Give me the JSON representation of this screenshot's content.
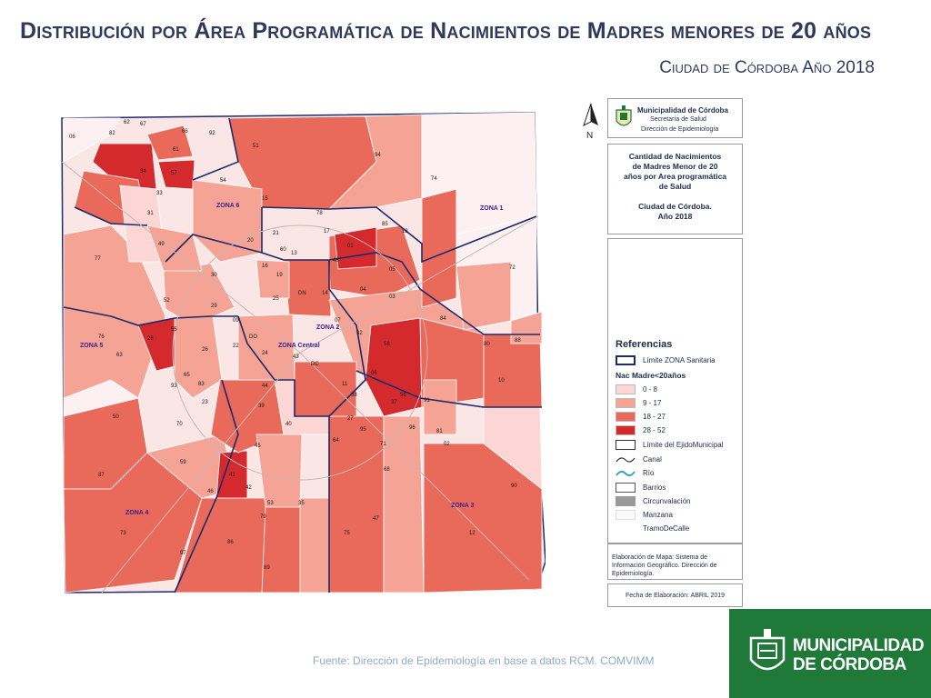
{
  "title": "Distribución por Área Programática de Nacimientos de Madres menores de 20 años",
  "subtitle": "Ciudad de Córdoba  Año 2018",
  "source": "Fuente: Dirección de Epidemiología en base a datos RCM. COMVIMM",
  "north_label": "N",
  "header_panel": {
    "line1": "Municipalidad de Córdoba",
    "line2": "Secretaría de Salud",
    "line3": "Dirección de Epidemiología"
  },
  "map_title": {
    "lines": [
      "Cantidad de Nacimientos",
      "de Madres Menor de 20",
      "años por Area programática",
      "de Salud",
      "",
      "Ciudad de Córdoba.",
      "Año 2018"
    ]
  },
  "legend": {
    "heading": "Referencias",
    "limit_zone": "Límite ZONA Sanitaria",
    "subheading": "Nac Madre<20años",
    "classes": [
      {
        "label": "0 - 8",
        "color": "#fcd5d5"
      },
      {
        "label": "9 - 17",
        "color": "#f5a394"
      },
      {
        "label": "18 - 27",
        "color": "#e96a5a"
      },
      {
        "label": "28 - 52",
        "color": "#d42a2e"
      }
    ],
    "others": [
      "Límite del EjidoMunicipal",
      "Canal",
      "Río",
      "Barrios",
      "Circunvalación",
      "Manzana",
      "TramoDeCalle"
    ]
  },
  "elaboration": "Elaboración de Mapa: Sistema de Información Geográfico. Dirección de Epidemiología.",
  "fecha": "Fecha de Elaboración: ABRIL 2019",
  "logo": {
    "line1": "MUNICIPALIDAD",
    "line2": "DE CÓRDOBA",
    "bg": "#1f7a3a"
  },
  "zones": [
    "ZONA 1",
    "ZONA 2",
    "ZONA 3",
    "ZONA 4",
    "ZONA 5",
    "ZONA 6",
    "ZONA Central"
  ],
  "areas": [
    "06",
    "62",
    "67",
    "82",
    "66",
    "92",
    "51",
    "94",
    "61",
    "34",
    "57",
    "54",
    "74",
    "33",
    "15",
    "ZONA 6",
    "31",
    "85",
    "78",
    "18",
    "21",
    "17",
    "01",
    "20",
    "60",
    "13",
    "49",
    "77",
    "48",
    "16",
    "19",
    "05",
    "72",
    "30",
    "DN",
    "14",
    "04",
    "03",
    "52",
    "29",
    "09",
    "25",
    "07",
    "32",
    "84",
    "55",
    "28",
    "DO",
    "22",
    "24",
    "58",
    "80",
    "88",
    "76",
    "63",
    "26",
    "43",
    "DC",
    "65",
    "83",
    "93",
    "44",
    "11",
    "38",
    "06",
    "10",
    "56",
    "37",
    "91",
    "23",
    "39",
    "50",
    "70",
    "27",
    "95",
    "96",
    "81",
    "40",
    "64",
    "71",
    "02",
    "45",
    "59",
    "68",
    "87",
    "41",
    "42",
    "46",
    "53",
    "35",
    "79",
    "47",
    "90",
    "73",
    "86",
    "75",
    "12",
    "97",
    "89"
  ]
}
